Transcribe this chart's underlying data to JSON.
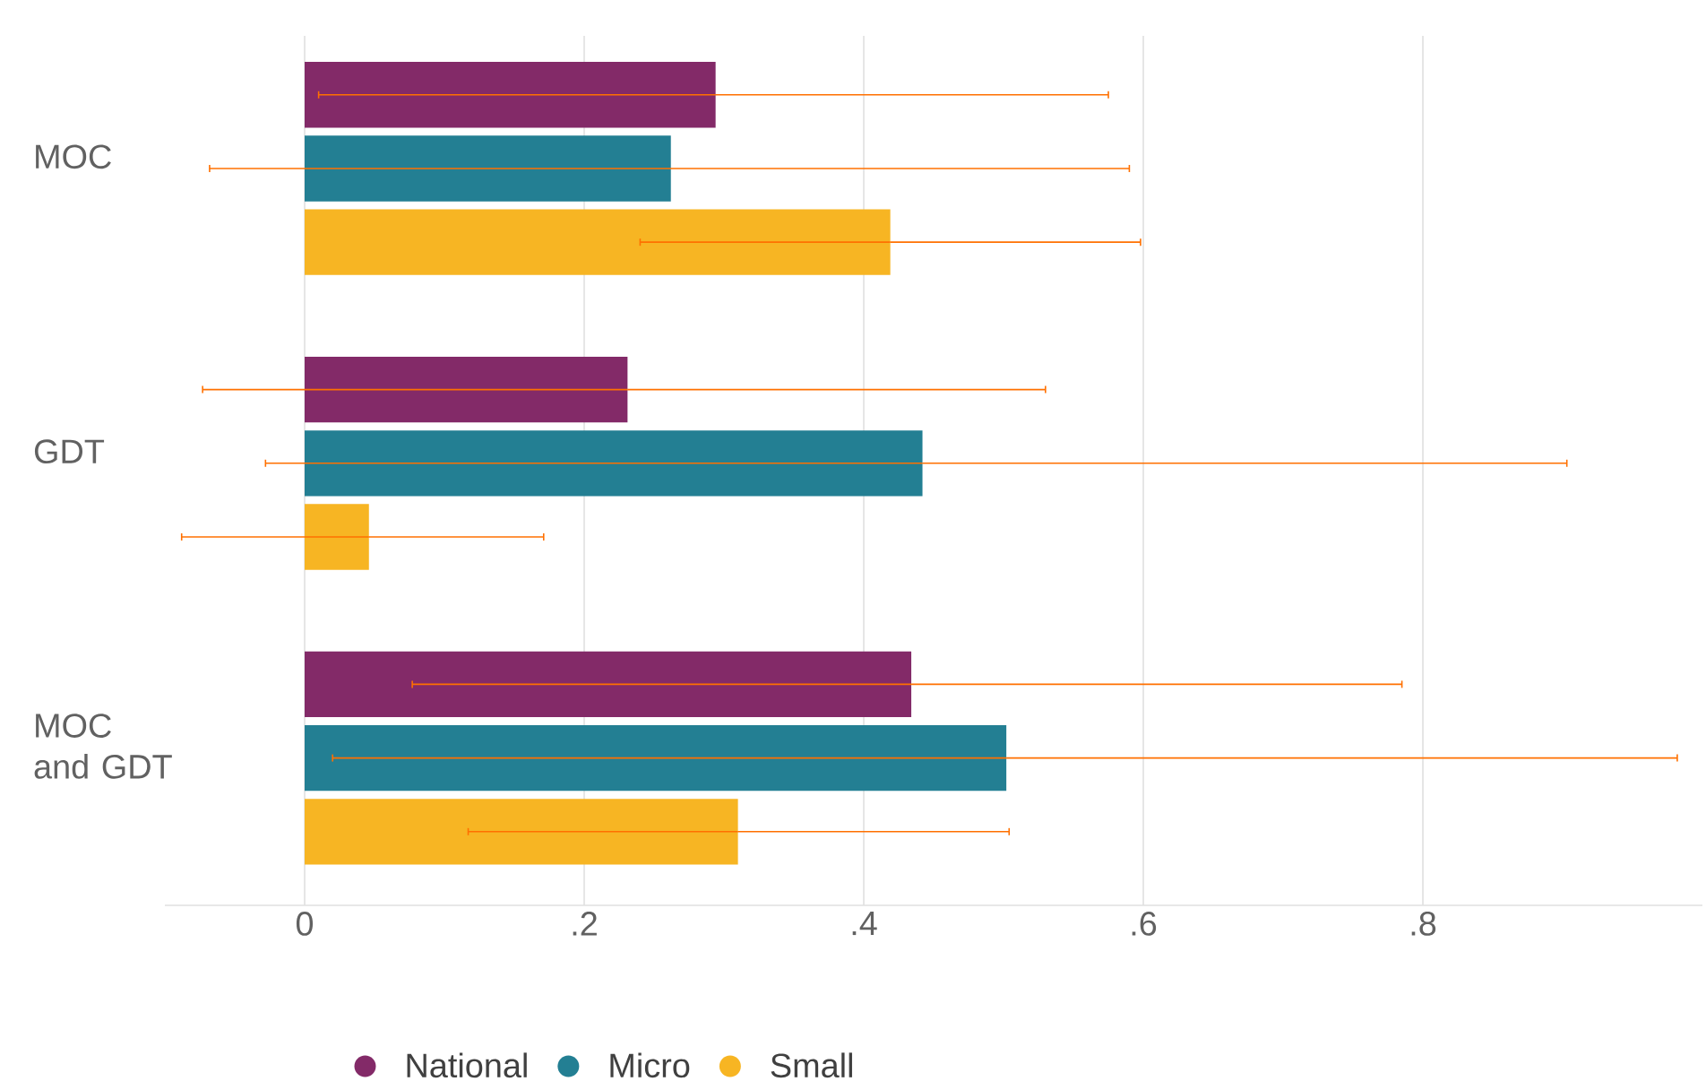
{
  "chart_data": {
    "type": "bar",
    "orientation": "horizontal",
    "categories": [
      "MOC",
      "GDT",
      "MOC and GDT"
    ],
    "series": [
      {
        "name": "National",
        "color": "#832a68",
        "values": [
          0.294,
          0.231,
          0.434
        ],
        "errors": [
          [
            0.01,
            0.575
          ],
          [
            -0.073,
            0.53
          ],
          [
            0.077,
            0.785
          ]
        ]
      },
      {
        "name": "Micro",
        "color": "#237f93",
        "values": [
          0.262,
          0.442,
          0.502
        ],
        "errors": [
          [
            -0.068,
            0.59
          ],
          [
            -0.028,
            0.903
          ],
          [
            0.02,
            0.982
          ]
        ]
      },
      {
        "name": "Small",
        "color": "#f7b523",
        "values": [
          0.419,
          0.046,
          0.31
        ],
        "errors": [
          [
            0.24,
            0.598
          ],
          [
            -0.088,
            0.171
          ],
          [
            0.117,
            0.504
          ]
        ]
      }
    ],
    "xlim": [
      -0.1,
      1.0
    ],
    "xticks": [
      0,
      {
        "value": 0.2,
        "label": ".2"
      },
      {
        "value": 0.4,
        "label": ".4"
      },
      {
        "value": 0.6,
        "label": ".6"
      },
      {
        "value": 0.8,
        "label": ".8"
      }
    ],
    "grid": "x",
    "legend": "bottom"
  }
}
